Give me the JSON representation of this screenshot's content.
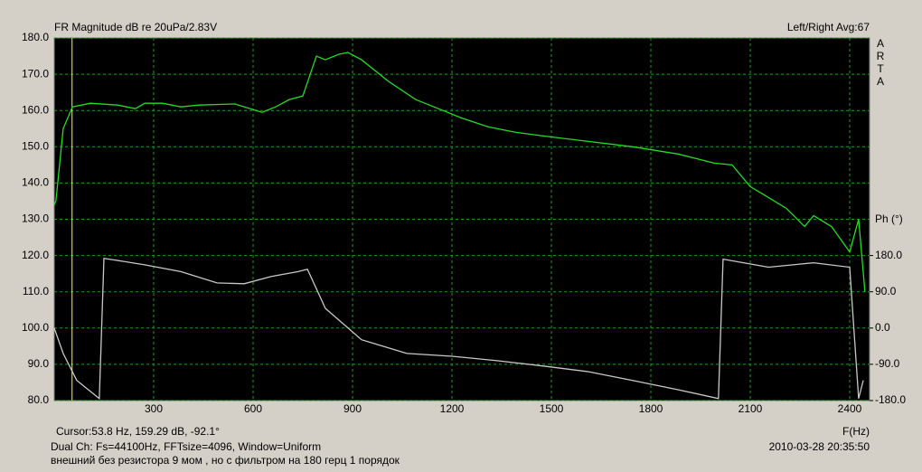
{
  "chart_data": {
    "type": "line",
    "title": "FR Magnitude dB re 20uPa/2.83V",
    "info_right": "Left/Right  Avg:67",
    "brand_letters": [
      "A",
      "R",
      "T",
      "A"
    ],
    "y2_label": "Ph (°)",
    "x_label": "F(Hz)",
    "cursor_text": "Cursor:53.8 Hz, 159.29 dB, -92.1°",
    "settings_text": "Dual Ch: Fs=44100Hz, FFTsize=4096, Window=Uniform",
    "timestamp": "2010-03-28  20:35:50",
    "note": "внешний без резистора 9 мом , но с фильтром на 180 герц 1 порядок",
    "cursor_x": 53.8,
    "cursor_color": "#ffff00",
    "grid": true,
    "grid_color": "#1f9c1f",
    "xlim": [
      0,
      2460
    ],
    "xticks": [
      300,
      600,
      900,
      1200,
      1500,
      1800,
      2100,
      2400
    ],
    "ylim": [
      80,
      180
    ],
    "yticks": [
      {
        "value": 80,
        "label": "80.0"
      },
      {
        "value": 90,
        "label": "90.0"
      },
      {
        "value": 100,
        "label": "100.0"
      },
      {
        "value": 110,
        "label": "110.0"
      },
      {
        "value": 120,
        "label": "120.0"
      },
      {
        "value": 130,
        "label": "130.0"
      },
      {
        "value": 140,
        "label": "140.0"
      },
      {
        "value": 150,
        "label": "150.0"
      },
      {
        "value": 160,
        "label": "160.0"
      },
      {
        "value": 170,
        "label": "170.0"
      },
      {
        "value": 180,
        "label": "180.0"
      }
    ],
    "y2lim": [
      -180,
      720
    ],
    "y2ticks": [
      {
        "value": -180,
        "label": "-180.0"
      },
      {
        "value": -90,
        "label": "-90.0"
      },
      {
        "value": 0,
        "label": "0.0"
      },
      {
        "value": 90,
        "label": "90.0"
      },
      {
        "value": 180,
        "label": "180.0"
      }
    ],
    "series": [
      {
        "color": "#22dd22",
        "x": [
          0,
          5,
          27,
          55,
          109,
          191,
          245,
          273,
          327,
          382,
          436,
          545,
          627,
          668,
          709,
          750,
          791,
          818,
          859,
          886,
          927,
          1009,
          1091,
          1173,
          1227,
          1309,
          1391,
          1473,
          1609,
          1745,
          1882,
          1991,
          2045,
          2100,
          2155,
          2209,
          2264,
          2291,
          2345,
          2400,
          2427,
          2446
        ],
        "values": [
          134,
          135,
          155,
          161,
          162,
          161.5,
          160.5,
          162,
          162,
          161,
          161.5,
          161.8,
          159.5,
          161,
          163,
          164,
          175,
          174,
          175.5,
          176,
          174,
          168,
          163,
          160,
          158,
          155.5,
          154,
          153,
          151.5,
          150,
          148,
          145.5,
          145,
          139,
          136,
          133,
          128,
          131,
          128,
          121,
          130,
          110
        ]
      },
      {
        "color": "#c8c8c8",
        "axis": "y2",
        "x": [
          0,
          27,
          68,
          136,
          150,
          205,
          273,
          382,
          491,
          573,
          655,
          736,
          764,
          818,
          927,
          1064,
          1200,
          1336,
          1473,
          1609,
          1745,
          1882,
          2004,
          2018,
          2155,
          2291,
          2400,
          2427,
          2441
        ],
        "values": [
          0,
          -63,
          -130,
          -175,
          173,
          166,
          157,
          140,
          112,
          110,
          128,
          140,
          146,
          49,
          -29,
          -63,
          -70,
          -81,
          -94,
          -108,
          -130,
          -153,
          -175,
          171,
          151,
          162,
          151,
          -175,
          -130
        ]
      }
    ]
  }
}
